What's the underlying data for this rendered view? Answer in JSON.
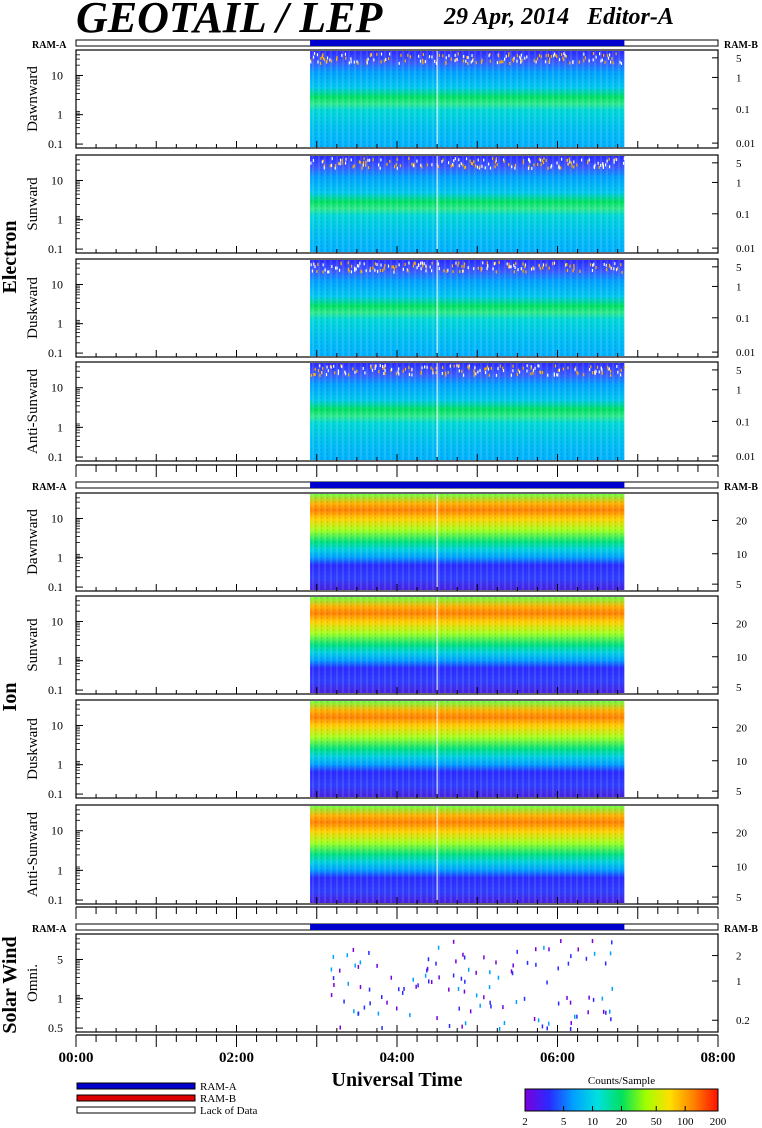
{
  "header": {
    "title": "GEOTAIL / LEP",
    "date": "29 Apr, 2014",
    "editor": "Editor-A"
  },
  "labels": {
    "ram_a": "RAM-A",
    "ram_b": "RAM-B",
    "xlabel": "Universal Time",
    "colorbar_title": "Counts/Sample"
  },
  "legend": {
    "items": [
      {
        "label": "RAM-A",
        "color": "#0000cc"
      },
      {
        "label": "RAM-B",
        "color": "#dd0000"
      },
      {
        "label": "Lack of Data",
        "color": "#ffffff"
      }
    ]
  },
  "colorbar": {
    "ticks": [
      "2",
      "5",
      "10",
      "20",
      "50",
      "100",
      "200"
    ],
    "colors": [
      "#7a00dc",
      "#2a2aff",
      "#00a0ff",
      "#00e0e0",
      "#00e060",
      "#a0ff00",
      "#ffe000",
      "#ff8000",
      "#ff1000"
    ]
  },
  "chart_data": {
    "type": "heatmap",
    "xlim": [
      "00:00",
      "08:00"
    ],
    "xticks": [
      "00:00",
      "02:00",
      "04:00",
      "06:00",
      "08:00"
    ],
    "data_coverage": [
      "02:55",
      "06:50"
    ],
    "gap_line": "04:30",
    "groups": [
      {
        "name": "Electron",
        "yticks_left": [
          "10",
          "1",
          "0.1"
        ],
        "yticks_right": [
          "5",
          "1",
          "0.1",
          "0.01"
        ],
        "panels": [
          {
            "label": "Dawnward",
            "kind": "electron"
          },
          {
            "label": "Sunward",
            "kind": "electron"
          },
          {
            "label": "Duskward",
            "kind": "electron"
          },
          {
            "label": "Anti-Sunward",
            "kind": "electron"
          }
        ]
      },
      {
        "name": "Ion",
        "yticks_left": [
          "10",
          "1",
          "0.1"
        ],
        "yticks_right": [
          "20",
          "10",
          "5"
        ],
        "panels": [
          {
            "label": "Dawnward",
            "kind": "ion"
          },
          {
            "label": "Sunward",
            "kind": "ion"
          },
          {
            "label": "Duskward",
            "kind": "ion"
          },
          {
            "label": "Anti-Sunward",
            "kind": "ion"
          }
        ]
      },
      {
        "name": "Solar Wind",
        "yticks_left": [
          "5",
          "1",
          "0.5"
        ],
        "yticks_right": [
          "2",
          "1",
          "0.2"
        ],
        "panels": [
          {
            "label": "Omni.",
            "kind": "sw"
          }
        ]
      }
    ]
  }
}
